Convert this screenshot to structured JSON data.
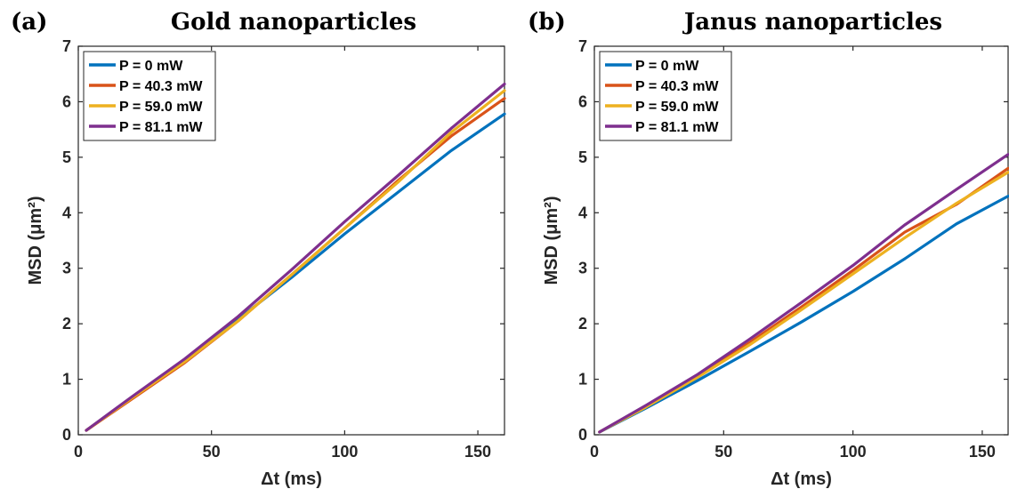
{
  "chart_data": [
    {
      "type": "line",
      "panel": "(a)",
      "title": "Gold nanoparticles",
      "xlabel": "Δt (ms)",
      "ylabel": "MSD (μm²)",
      "xlim": [
        0,
        160
      ],
      "ylim": [
        0,
        7
      ],
      "xticks": [
        "0",
        "50",
        "100",
        "150"
      ],
      "yticks": [
        "0",
        "1",
        "2",
        "3",
        "4",
        "5",
        "6",
        "7"
      ],
      "grid": false,
      "legend_position": "top-left",
      "series": [
        {
          "name": "P = 0 mW",
          "color": "#0072BD",
          "x": [
            3,
            20,
            40,
            60,
            80,
            100,
            120,
            140,
            160
          ],
          "y": [
            0.08,
            0.66,
            1.33,
            2.08,
            2.83,
            3.62,
            4.37,
            5.12,
            5.78
          ]
        },
        {
          "name": "P = 40.3 mW",
          "color": "#D95319",
          "x": [
            3,
            20,
            40,
            60,
            80,
            100,
            120,
            140,
            160
          ],
          "y": [
            0.08,
            0.64,
            1.3,
            2.05,
            2.88,
            3.72,
            4.58,
            5.38,
            6.06
          ]
        },
        {
          "name": "P = 59.0 mW",
          "color": "#EDB120",
          "x": [
            3,
            20,
            40,
            60,
            80,
            100,
            120,
            140,
            160
          ],
          "y": [
            0.08,
            0.66,
            1.32,
            2.05,
            2.88,
            3.72,
            4.55,
            5.45,
            6.2
          ]
        },
        {
          "name": "P = 81.1 mW",
          "color": "#7E2F8E",
          "x": [
            3,
            20,
            40,
            60,
            80,
            100,
            120,
            140,
            160
          ],
          "y": [
            0.08,
            0.68,
            1.37,
            2.13,
            2.97,
            3.84,
            4.67,
            5.52,
            6.32
          ]
        }
      ]
    },
    {
      "type": "line",
      "panel": "(b)",
      "title": "Janus nanoparticles",
      "xlabel": "Δt (ms)",
      "ylabel": "MSD (μm²)",
      "xlim": [
        0,
        160
      ],
      "ylim": [
        0,
        7
      ],
      "xticks": [
        "0",
        "50",
        "100",
        "150"
      ],
      "yticks": [
        "0",
        "1",
        "2",
        "3",
        "4",
        "5",
        "6",
        "7"
      ],
      "grid": false,
      "legend_position": "top-left",
      "series": [
        {
          "name": "P = 0 mW",
          "color": "#0072BD",
          "x": [
            2,
            20,
            40,
            60,
            80,
            100,
            120,
            140,
            160
          ],
          "y": [
            0.05,
            0.48,
            0.98,
            1.5,
            2.03,
            2.58,
            3.17,
            3.8,
            4.3
          ]
        },
        {
          "name": "P = 40.3 mW",
          "color": "#D95319",
          "x": [
            2,
            20,
            40,
            60,
            80,
            100,
            120,
            140,
            160
          ],
          "y": [
            0.05,
            0.52,
            1.06,
            1.66,
            2.3,
            2.96,
            3.65,
            4.15,
            4.8
          ]
        },
        {
          "name": "P = 59.0 mW",
          "color": "#EDB120",
          "x": [
            2,
            20,
            40,
            60,
            80,
            100,
            120,
            140,
            160
          ],
          "y": [
            0.05,
            0.5,
            1.04,
            1.62,
            2.25,
            2.9,
            3.55,
            4.17,
            4.73
          ]
        },
        {
          "name": "P = 81.1 mW",
          "color": "#7E2F8E",
          "x": [
            2,
            20,
            40,
            60,
            80,
            100,
            120,
            140,
            160
          ],
          "y": [
            0.05,
            0.53,
            1.09,
            1.72,
            2.38,
            3.05,
            3.78,
            4.42,
            5.05
          ]
        }
      ]
    }
  ]
}
